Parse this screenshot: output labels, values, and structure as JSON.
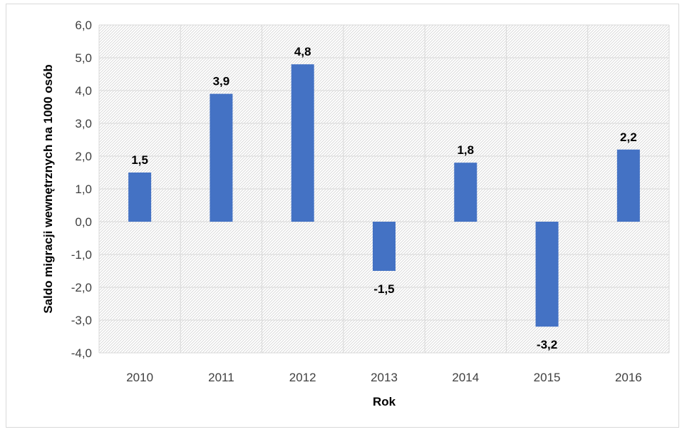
{
  "chart_data": {
    "type": "bar",
    "title": "",
    "xlabel": "Rok",
    "ylabel": "Saldo migracji wewnętrznych na 1000 osób",
    "categories": [
      "2010",
      "2011",
      "2012",
      "2013",
      "2014",
      "2015",
      "2016"
    ],
    "values": [
      1.5,
      3.9,
      4.8,
      -1.5,
      1.8,
      -3.2,
      2.2
    ],
    "value_labels": [
      "1,5",
      "3,9",
      "4,8",
      "-1,5",
      "1,8",
      "-3,2",
      "2,2"
    ],
    "ylim": [
      -4.0,
      6.0
    ],
    "yticks": [
      6.0,
      5.0,
      4.0,
      3.0,
      2.0,
      1.0,
      0.0,
      -1.0,
      -2.0,
      -3.0,
      -4.0
    ],
    "ytick_labels": [
      "6,0",
      "5,0",
      "4,0",
      "3,0",
      "2,0",
      "1,0",
      "0,0",
      "-1,0",
      "-2,0",
      "-3,0",
      "-4,0"
    ],
    "grid": true,
    "legend": "none",
    "colors": {
      "bar": "#4472c4",
      "grid": "#d9d9d9",
      "hatch": "#dcdcdc",
      "text": "#404040"
    }
  }
}
